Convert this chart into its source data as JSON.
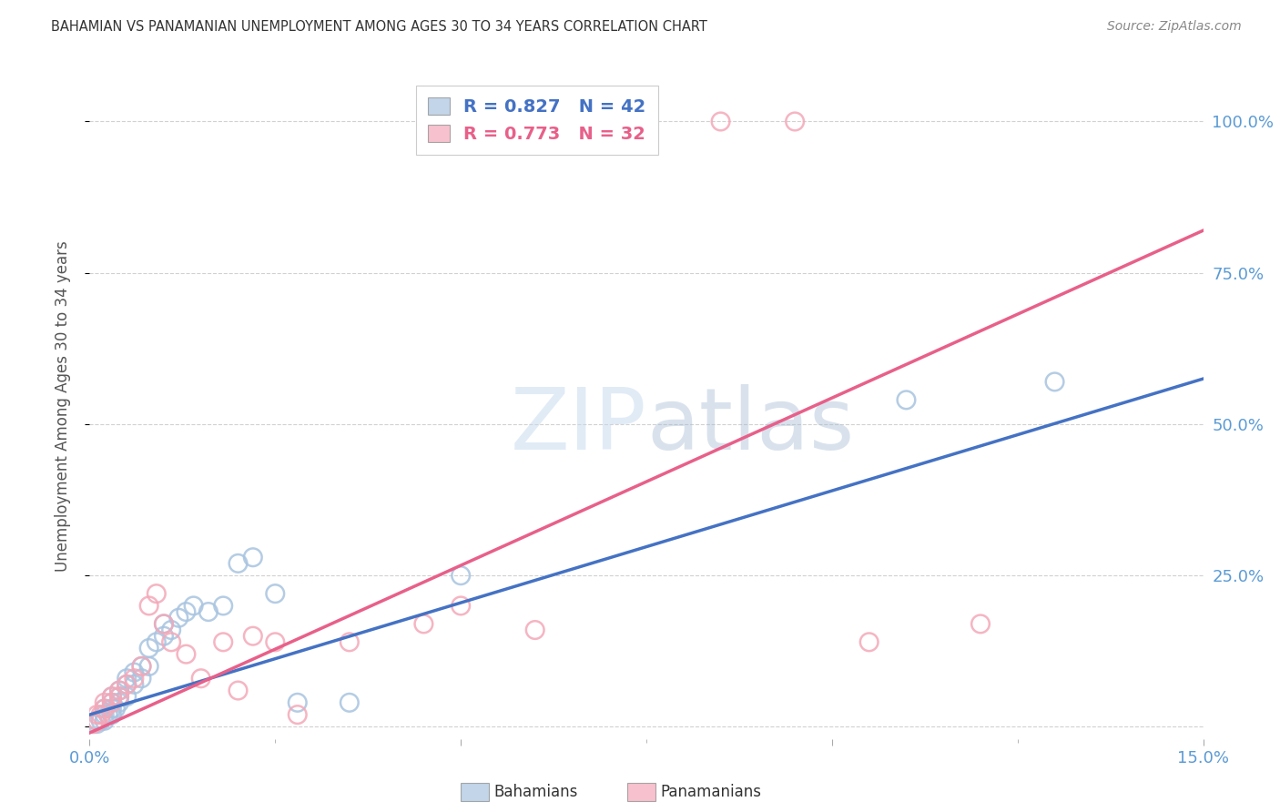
{
  "title": "BAHAMIAN VS PANAMANIAN UNEMPLOYMENT AMONG AGES 30 TO 34 YEARS CORRELATION CHART",
  "source": "Source: ZipAtlas.com",
  "ylabel": "Unemployment Among Ages 30 to 34 years",
  "blue_label": "Bahamians",
  "pink_label": "Panamanians",
  "blue_R": 0.827,
  "blue_N": 42,
  "pink_R": 0.773,
  "pink_N": 32,
  "blue_color": "#A8C4E0",
  "pink_color": "#F4A8B8",
  "blue_line_color": "#4472C4",
  "pink_line_color": "#E8608A",
  "axis_color": "#5B9BD5",
  "xlim": [
    0.0,
    0.15
  ],
  "ylim": [
    -0.02,
    1.08
  ],
  "ytick_vals": [
    0.0,
    0.25,
    0.5,
    0.75,
    1.0
  ],
  "ytick_labels": [
    "",
    "25.0%",
    "50.0%",
    "75.0%",
    "100.0%"
  ],
  "blue_x": [
    0.0005,
    0.001,
    0.001,
    0.0015,
    0.002,
    0.002,
    0.002,
    0.0025,
    0.003,
    0.003,
    0.003,
    0.003,
    0.0035,
    0.004,
    0.004,
    0.004,
    0.005,
    0.005,
    0.005,
    0.006,
    0.006,
    0.007,
    0.007,
    0.008,
    0.008,
    0.009,
    0.01,
    0.01,
    0.011,
    0.012,
    0.013,
    0.014,
    0.016,
    0.018,
    0.02,
    0.022,
    0.025,
    0.028,
    0.035,
    0.05,
    0.11,
    0.13
  ],
  "blue_y": [
    0.005,
    0.005,
    0.01,
    0.01,
    0.01,
    0.02,
    0.03,
    0.02,
    0.02,
    0.03,
    0.04,
    0.05,
    0.03,
    0.04,
    0.05,
    0.06,
    0.05,
    0.07,
    0.08,
    0.07,
    0.09,
    0.08,
    0.1,
    0.1,
    0.13,
    0.14,
    0.15,
    0.17,
    0.16,
    0.18,
    0.19,
    0.2,
    0.19,
    0.2,
    0.27,
    0.28,
    0.22,
    0.04,
    0.04,
    0.25,
    0.54,
    0.57
  ],
  "pink_x": [
    0.0005,
    0.001,
    0.001,
    0.0015,
    0.002,
    0.002,
    0.003,
    0.003,
    0.004,
    0.004,
    0.005,
    0.006,
    0.007,
    0.008,
    0.009,
    0.01,
    0.011,
    0.013,
    0.015,
    0.018,
    0.02,
    0.022,
    0.025,
    0.028,
    0.035,
    0.045,
    0.05,
    0.06,
    0.085,
    0.095,
    0.105,
    0.12
  ],
  "pink_y": [
    0.005,
    0.01,
    0.02,
    0.02,
    0.03,
    0.04,
    0.04,
    0.05,
    0.05,
    0.06,
    0.07,
    0.08,
    0.1,
    0.2,
    0.22,
    0.17,
    0.14,
    0.12,
    0.08,
    0.14,
    0.06,
    0.15,
    0.14,
    0.02,
    0.14,
    0.17,
    0.2,
    0.16,
    1.0,
    1.0,
    0.14,
    0.17
  ],
  "blue_line_x0": 0.0,
  "blue_line_x1": 0.15,
  "blue_line_y0": 0.02,
  "blue_line_y1": 0.575,
  "pink_line_x0": 0.0,
  "pink_line_x1": 0.15,
  "pink_line_y0": -0.01,
  "pink_line_y1": 0.82,
  "background_color": "#FFFFFF",
  "grid_color": "#CCCCCC"
}
